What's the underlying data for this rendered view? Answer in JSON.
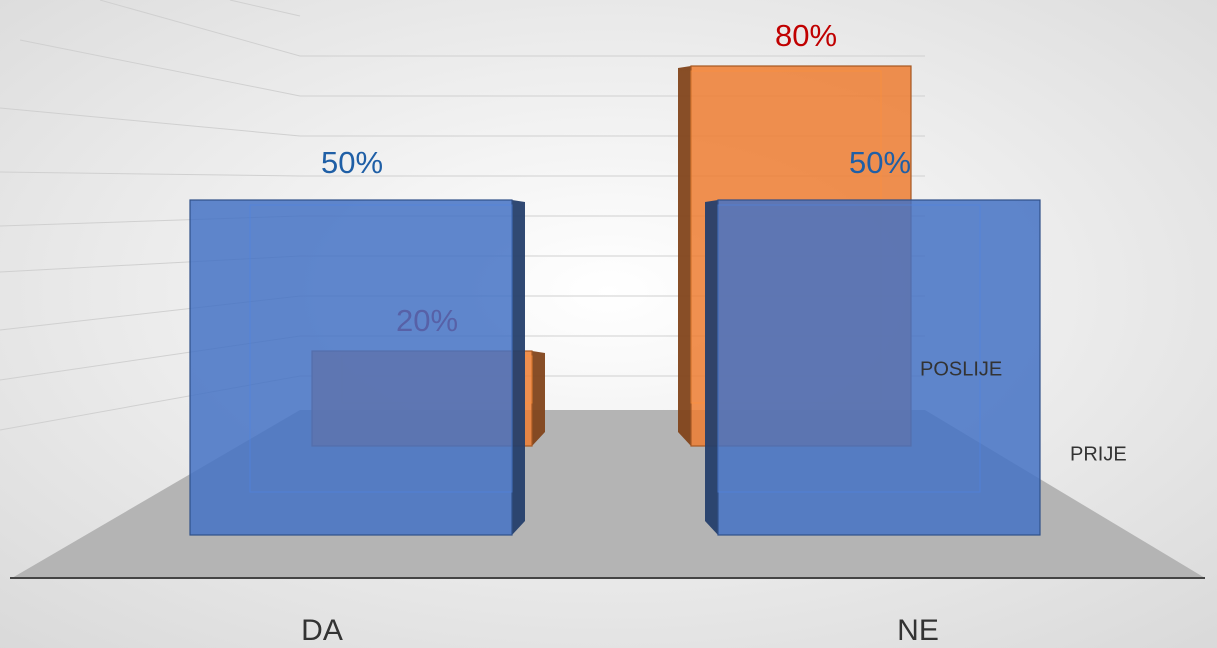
{
  "chart_data": {
    "type": "bar3d",
    "categories": [
      "DA",
      "NE"
    ],
    "series": [
      {
        "name": "PRIJE",
        "color": "#4472c4",
        "values": [
          50,
          50
        ],
        "value_labels": [
          "50%",
          "50%"
        ],
        "label_color": "#1f5fa6"
      },
      {
        "name": "POSLIJE",
        "color": "#ed7d31",
        "values": [
          20,
          80
        ],
        "value_labels": [
          "20%",
          "80%"
        ],
        "label_color": "#c00000"
      }
    ]
  }
}
